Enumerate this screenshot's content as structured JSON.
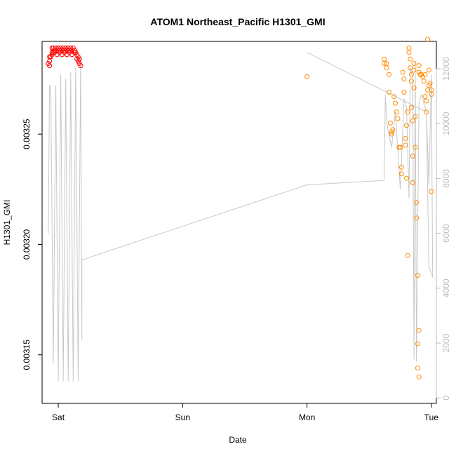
{
  "chart_data": {
    "type": "scatter",
    "title": "ATOM1 Northeast_Pacific H1301_GMI",
    "xlabel": "Date",
    "ylabel": "H1301_GMI",
    "x_unit": "days since Fri 00:00",
    "x_ticks": [
      {
        "x": 1,
        "label": "Sat"
      },
      {
        "x": 2,
        "label": "Sun"
      },
      {
        "x": 3,
        "label": "Mon"
      },
      {
        "x": 4,
        "label": "Tue"
      }
    ],
    "xlim": [
      0.87,
      4.04
    ],
    "ylim_left": [
      0.003128,
      0.003292
    ],
    "ylim_right": [
      -200,
      13000
    ],
    "y_ticks_left": [
      0.00315,
      0.0032,
      0.00325
    ],
    "y_tick_labels_left": [
      "0.00315",
      "0.00320",
      "0.00325"
    ],
    "y_ticks_right": [
      0,
      2000,
      4000,
      6000,
      8000,
      10000,
      12000
    ],
    "y_tick_labels_right": [
      "0",
      "2000",
      "4000",
      "6000",
      "8000",
      "10000",
      "12000"
    ],
    "colors": {
      "early_points": "#ff0000",
      "late_points": "#ff8c00",
      "line": "#c8c8c8",
      "right_axis": "#bdbdbd"
    },
    "series": [
      {
        "color": "#ff0000",
        "points": [
          {
            "x": 0.93,
            "y": 0.003283
          },
          {
            "x": 0.93,
            "y": 0.003285
          },
          {
            "x": 0.94,
            "y": 0.003285
          },
          {
            "x": 0.95,
            "y": 0.003287
          },
          {
            "x": 0.95,
            "y": 0.003289
          },
          {
            "x": 0.96,
            "y": 0.003287
          },
          {
            "x": 0.96,
            "y": 0.003289
          },
          {
            "x": 0.97,
            "y": 0.003288
          },
          {
            "x": 0.98,
            "y": 0.003289
          },
          {
            "x": 0.99,
            "y": 0.003288
          },
          {
            "x": 1.0,
            "y": 0.003289
          },
          {
            "x": 1.01,
            "y": 0.003288
          },
          {
            "x": 1.02,
            "y": 0.003289
          },
          {
            "x": 1.03,
            "y": 0.003288
          },
          {
            "x": 1.04,
            "y": 0.003289
          },
          {
            "x": 1.05,
            "y": 0.003288
          },
          {
            "x": 1.06,
            "y": 0.003289
          },
          {
            "x": 1.07,
            "y": 0.003288
          },
          {
            "x": 1.08,
            "y": 0.003289
          },
          {
            "x": 1.09,
            "y": 0.003288
          },
          {
            "x": 1.1,
            "y": 0.003289
          },
          {
            "x": 1.11,
            "y": 0.003288
          },
          {
            "x": 1.12,
            "y": 0.003289
          },
          {
            "x": 1.13,
            "y": 0.003288
          },
          {
            "x": 1.14,
            "y": 0.003287
          },
          {
            "x": 1.15,
            "y": 0.003286
          },
          {
            "x": 1.16,
            "y": 0.003285
          },
          {
            "x": 1.17,
            "y": 0.003284
          },
          {
            "x": 0.92,
            "y": 0.003282
          },
          {
            "x": 0.93,
            "y": 0.003281
          },
          {
            "x": 0.95,
            "y": 0.003286
          },
          {
            "x": 0.97,
            "y": 0.003287
          },
          {
            "x": 0.99,
            "y": 0.003286
          },
          {
            "x": 1.01,
            "y": 0.003287
          },
          {
            "x": 1.03,
            "y": 0.003286
          },
          {
            "x": 1.05,
            "y": 0.003287
          },
          {
            "x": 1.07,
            "y": 0.003286
          },
          {
            "x": 1.09,
            "y": 0.003287
          },
          {
            "x": 1.11,
            "y": 0.003286
          },
          {
            "x": 1.13,
            "y": 0.003287
          },
          {
            "x": 1.15,
            "y": 0.003284
          },
          {
            "x": 1.16,
            "y": 0.003283
          },
          {
            "x": 1.17,
            "y": 0.003282
          },
          {
            "x": 1.18,
            "y": 0.003281
          }
        ]
      },
      {
        "color": "#ff8c00",
        "points": [
          {
            "x": 3.0,
            "y": 0.003276
          },
          {
            "x": 3.62,
            "y": 0.003284
          },
          {
            "x": 3.62,
            "y": 0.003282
          },
          {
            "x": 3.64,
            "y": 0.003282
          },
          {
            "x": 3.64,
            "y": 0.00328
          },
          {
            "x": 3.66,
            "y": 0.003277
          },
          {
            "x": 3.66,
            "y": 0.003269
          },
          {
            "x": 3.67,
            "y": 0.003255
          },
          {
            "x": 3.68,
            "y": 0.003251
          },
          {
            "x": 3.68,
            "y": 0.00325
          },
          {
            "x": 3.69,
            "y": 0.003252
          },
          {
            "x": 3.7,
            "y": 0.003267
          },
          {
            "x": 3.71,
            "y": 0.003264
          },
          {
            "x": 3.72,
            "y": 0.00326
          },
          {
            "x": 3.73,
            "y": 0.003257
          },
          {
            "x": 3.74,
            "y": 0.003244
          },
          {
            "x": 3.75,
            "y": 0.003244
          },
          {
            "x": 3.76,
            "y": 0.003235
          },
          {
            "x": 3.76,
            "y": 0.003232
          },
          {
            "x": 3.77,
            "y": 0.003278
          },
          {
            "x": 3.78,
            "y": 0.003275
          },
          {
            "x": 3.78,
            "y": 0.003269
          },
          {
            "x": 3.79,
            "y": 0.003248
          },
          {
            "x": 3.79,
            "y": 0.003245
          },
          {
            "x": 3.8,
            "y": 0.003254
          },
          {
            "x": 3.8,
            "y": 0.00323
          },
          {
            "x": 3.81,
            "y": 0.00326
          },
          {
            "x": 3.81,
            "y": 0.003195
          },
          {
            "x": 3.82,
            "y": 0.003289
          },
          {
            "x": 3.82,
            "y": 0.003287
          },
          {
            "x": 3.83,
            "y": 0.003284
          },
          {
            "x": 3.83,
            "y": 0.00328
          },
          {
            "x": 3.84,
            "y": 0.003277
          },
          {
            "x": 3.84,
            "y": 0.003274
          },
          {
            "x": 3.84,
            "y": 0.003262
          },
          {
            "x": 3.85,
            "y": 0.003256
          },
          {
            "x": 3.85,
            "y": 0.00324
          },
          {
            "x": 3.85,
            "y": 0.003228
          },
          {
            "x": 3.86,
            "y": 0.003282
          },
          {
            "x": 3.86,
            "y": 0.003279
          },
          {
            "x": 3.86,
            "y": 0.003271
          },
          {
            "x": 3.87,
            "y": 0.003258
          },
          {
            "x": 3.87,
            "y": 0.003244
          },
          {
            "x": 3.88,
            "y": 0.003212
          },
          {
            "x": 3.88,
            "y": 0.003219
          },
          {
            "x": 3.89,
            "y": 0.003186
          },
          {
            "x": 3.9,
            "y": 0.003281
          },
          {
            "x": 3.9,
            "y": 0.003278
          },
          {
            "x": 3.91,
            "y": 0.003277
          },
          {
            "x": 3.92,
            "y": 0.003277
          },
          {
            "x": 3.93,
            "y": 0.003276
          },
          {
            "x": 3.94,
            "y": 0.003274
          },
          {
            "x": 3.95,
            "y": 0.003277
          },
          {
            "x": 3.95,
            "y": 0.003267
          },
          {
            "x": 3.96,
            "y": 0.003265
          },
          {
            "x": 3.96,
            "y": 0.00326
          },
          {
            "x": 3.97,
            "y": 0.00327
          },
          {
            "x": 3.98,
            "y": 0.003272
          },
          {
            "x": 3.99,
            "y": 0.003273
          },
          {
            "x": 4.0,
            "y": 0.00327
          },
          {
            "x": 4.0,
            "y": 0.003268
          },
          {
            "x": 4.0,
            "y": 0.003224
          },
          {
            "x": 3.9,
            "y": 0.003161
          },
          {
            "x": 3.89,
            "y": 0.003155
          },
          {
            "x": 3.89,
            "y": 0.003144
          },
          {
            "x": 3.9,
            "y": 0.00314
          },
          {
            "x": 3.97,
            "y": 0.003293
          },
          {
            "x": 3.98,
            "y": 0.003279
          }
        ]
      }
    ],
    "line": {
      "color": "#c8c8c8",
      "points": [
        {
          "x": 0.92,
          "y": 0.003205
        },
        {
          "x": 0.93,
          "y": 0.003272
        },
        {
          "x": 0.94,
          "y": 0.003272
        },
        {
          "x": 0.96,
          "y": 0.003146
        },
        {
          "x": 0.98,
          "y": 0.003272
        },
        {
          "x": 1.0,
          "y": 0.003138
        },
        {
          "x": 1.02,
          "y": 0.003277
        },
        {
          "x": 1.04,
          "y": 0.003138
        },
        {
          "x": 1.06,
          "y": 0.003275
        },
        {
          "x": 1.08,
          "y": 0.003138
        },
        {
          "x": 1.1,
          "y": 0.003278
        },
        {
          "x": 1.12,
          "y": 0.003138
        },
        {
          "x": 1.14,
          "y": 0.00328
        },
        {
          "x": 1.16,
          "y": 0.003138
        },
        {
          "x": 1.18,
          "y": 0.003285
        },
        {
          "x": 1.19,
          "y": 0.003157
        },
        {
          "x": 1.19,
          "y": 0.003193
        },
        {
          "x": 3.0,
          "y": 0.003227
        },
        {
          "x": 3.62,
          "y": 0.003229
        },
        {
          "x": 3.63,
          "y": 0.003268
        },
        {
          "x": 3.64,
          "y": 0.003256
        },
        {
          "x": 3.65,
          "y": 0.003252
        },
        {
          "x": 3.68,
          "y": 0.003244
        },
        {
          "x": 3.71,
          "y": 0.00326
        },
        {
          "x": 3.75,
          "y": 0.003225
        },
        {
          "x": 3.78,
          "y": 0.003266
        },
        {
          "x": 3.8,
          "y": 0.003262
        },
        {
          "x": 3.82,
          "y": 0.003221
        },
        {
          "x": 3.83,
          "y": 0.00328
        },
        {
          "x": 3.85,
          "y": 0.003276
        },
        {
          "x": 3.86,
          "y": 0.003148
        },
        {
          "x": 3.87,
          "y": 0.003283
        },
        {
          "x": 3.88,
          "y": 0.003147
        },
        {
          "x": 3.9,
          "y": 0.003264
        },
        {
          "x": 3.92,
          "y": 0.003268
        },
        {
          "x": 3.96,
          "y": 0.00326
        },
        {
          "x": 3.98,
          "y": 0.003227
        },
        {
          "x": 4.0,
          "y": 0.003277
        },
        {
          "x": 4.01,
          "y": 0.003185
        },
        {
          "x": 3.98,
          "y": 0.00319
        },
        {
          "x": 3.96,
          "y": 0.00326
        },
        {
          "x": 3.0,
          "y": 0.003287
        }
      ]
    }
  }
}
